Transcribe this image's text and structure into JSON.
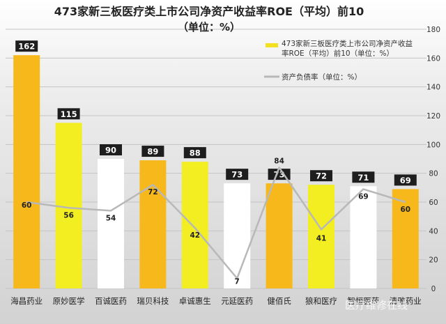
{
  "chart_data": {
    "type": "bar",
    "title_line1": "473家新三板医疗类上市公司净资产收益率ROE（平均）前10",
    "title_line2": "（单位：%）",
    "categories": [
      "海昌药业",
      "原妙医学",
      "百诚医药",
      "瑞贝科技",
      "卓诚惠生",
      "元延医药",
      "健佰氏",
      "狼和医疗",
      "智恒医药",
      "清雅药业"
    ],
    "series": [
      {
        "name": "473家新三板医疗类上市公司净资产收益率ROE（平均）前10（单位：%）",
        "kind": "bar",
        "values": [
          162,
          115,
          90,
          89,
          88,
          73,
          73,
          72,
          71,
          69
        ],
        "labels": [
          "162",
          "115",
          "90",
          "89",
          "88",
          "73",
          "73",
          "72",
          "71",
          "69"
        ]
      },
      {
        "name": "资产负债率（单位：%）",
        "kind": "line",
        "values": [
          60,
          56,
          54,
          72,
          42,
          7,
          84,
          41,
          69,
          60
        ],
        "labels": [
          "60",
          "56",
          "54",
          "72",
          "42",
          "7",
          "84",
          "41",
          "69",
          "60"
        ]
      }
    ],
    "bar_colors": [
      "#f7b81c",
      "#f2ee21",
      "#ffffff",
      "#f7b81c",
      "#f2ee21",
      "#ffffff",
      "#f7b81c",
      "#f2ee21",
      "#ffffff",
      "#f7b81c"
    ],
    "line_color": "#b8b8b8",
    "ylim": [
      0,
      180
    ],
    "yticks": [
      "0",
      "20",
      "40",
      "60",
      "80",
      "100",
      "120",
      "140",
      "160",
      "180"
    ],
    "y_axis_side": "right",
    "grid": true,
    "legend_position": "top-right",
    "watermark": "医疗维修在线"
  }
}
